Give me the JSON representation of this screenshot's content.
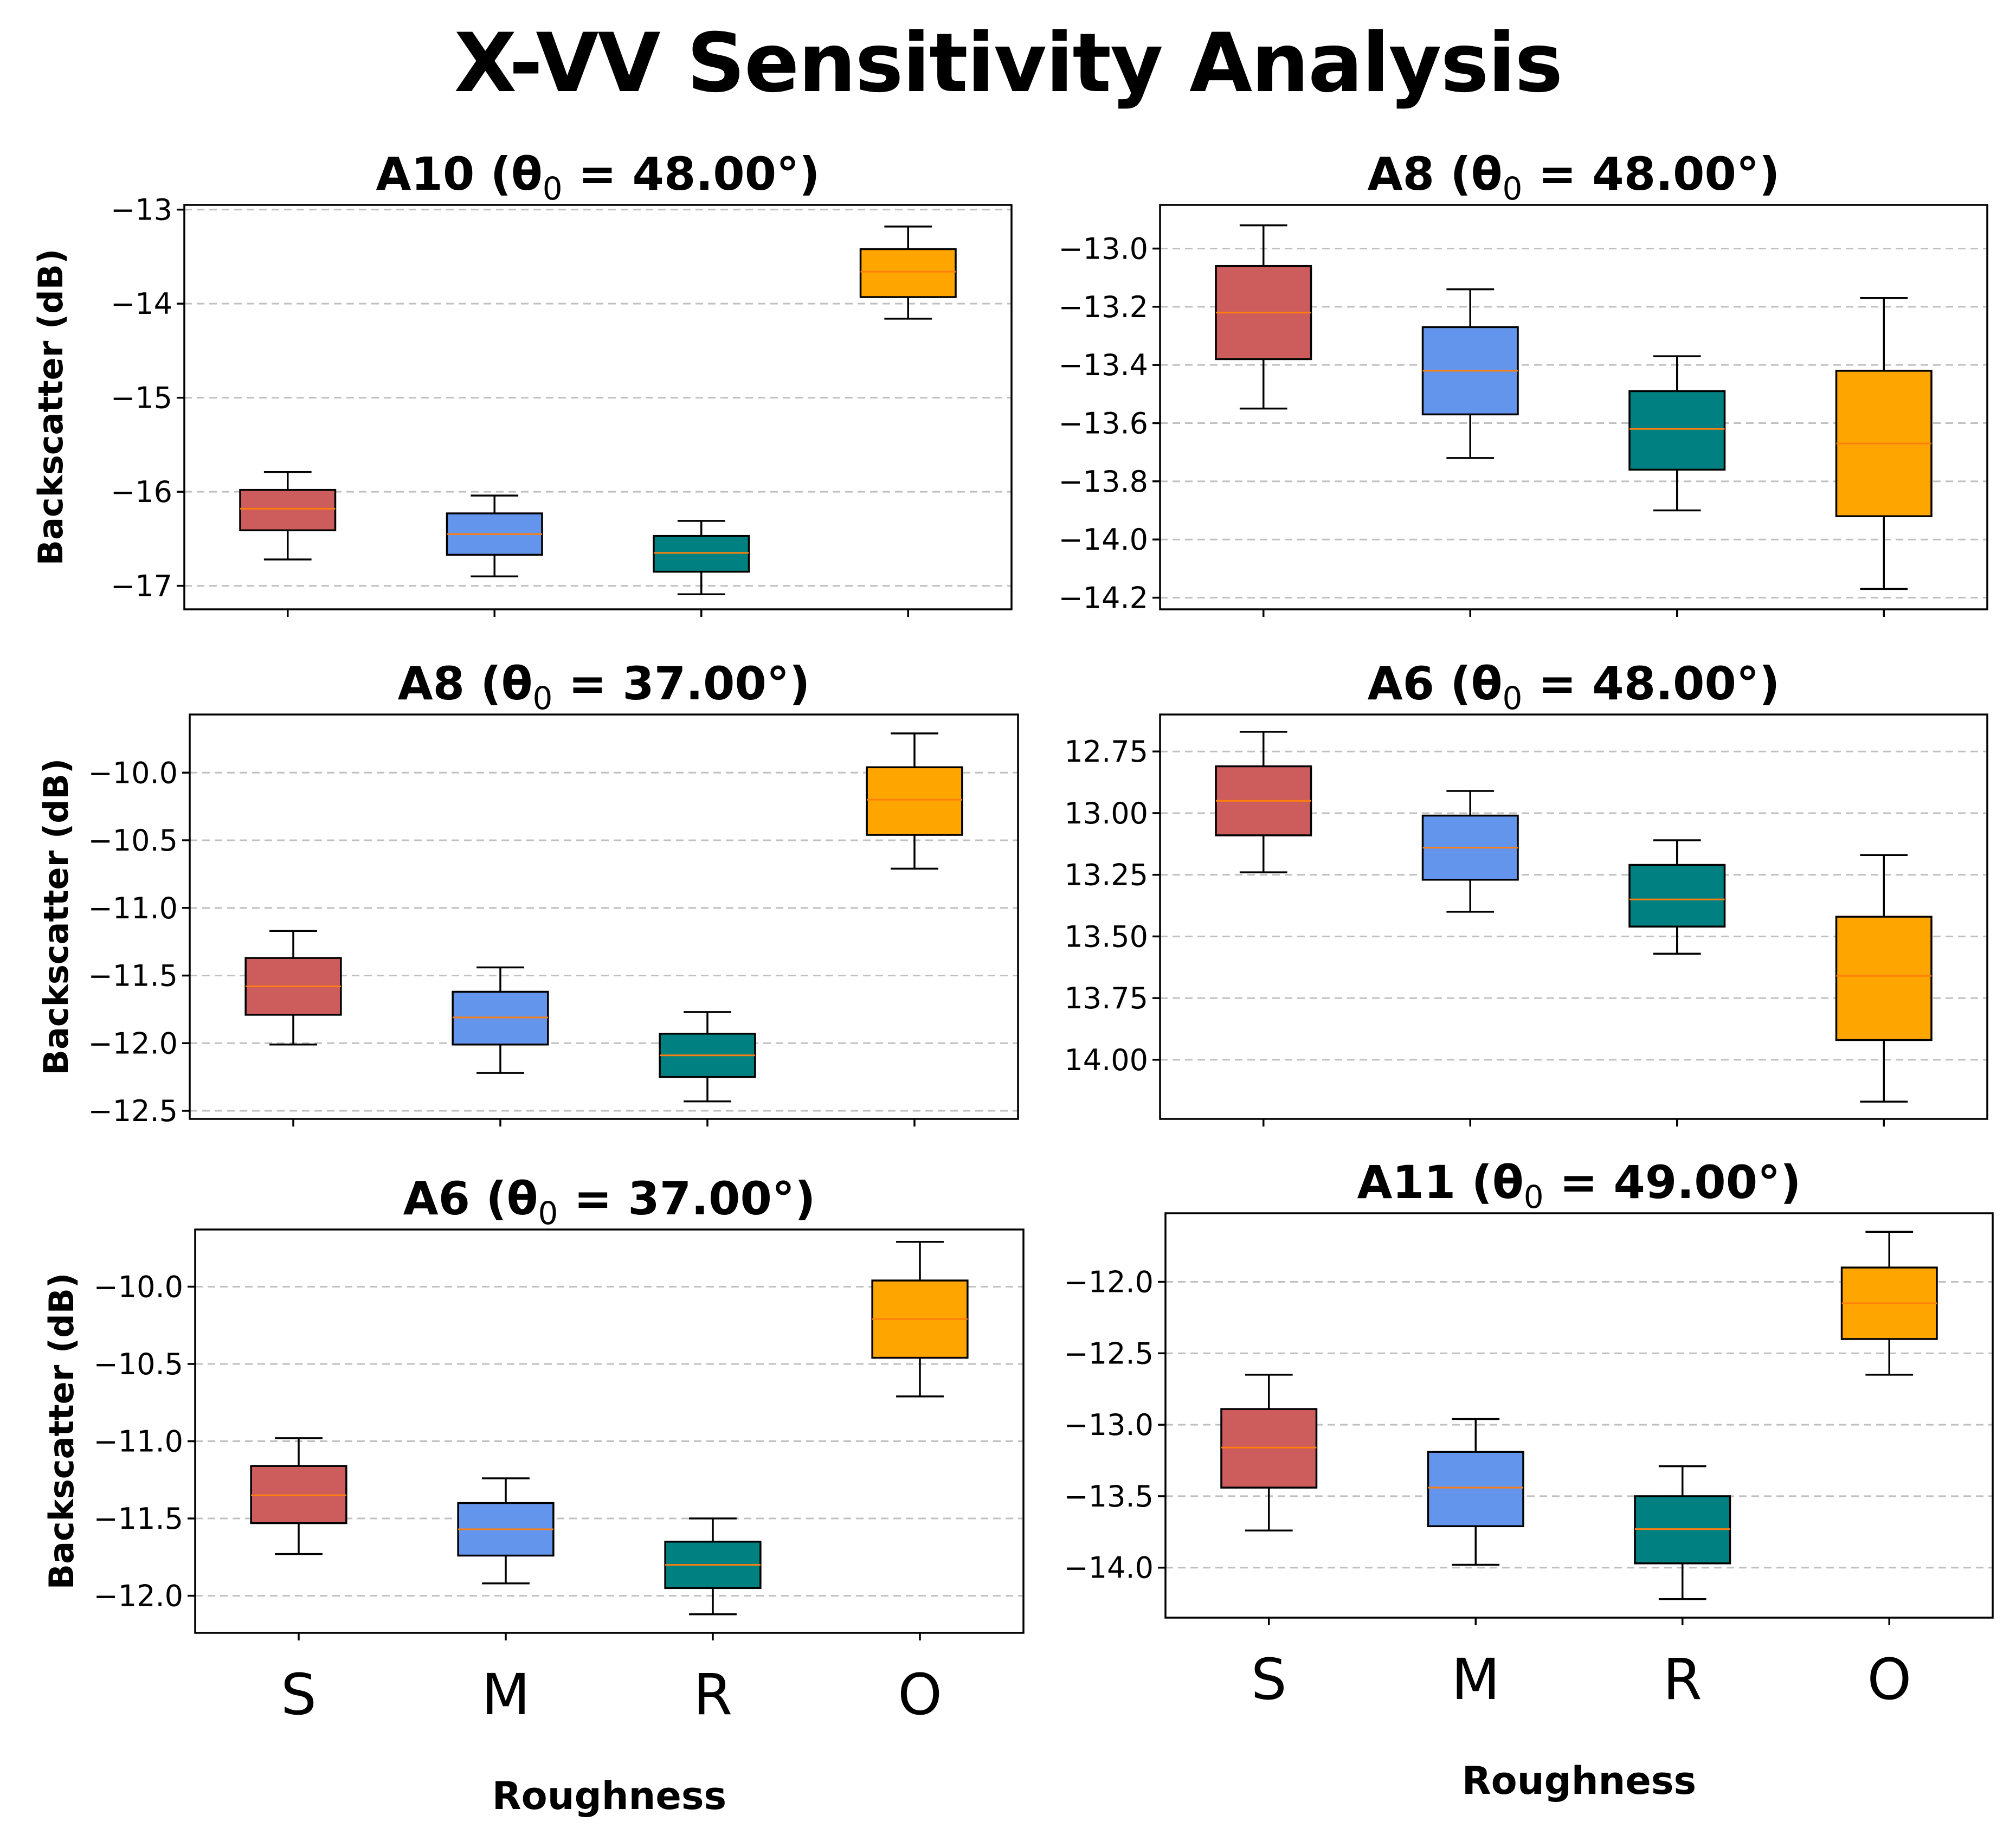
{
  "figure_title": "X-VV Sensitivity Analysis",
  "colors": {
    "S": "#cd5c5c",
    "M": "#6495ed",
    "R": "#008080",
    "O": "#ffa500",
    "median": "#ff7f0e",
    "grid": "#c0c0c0",
    "frame": "#000000"
  },
  "chart_data": [
    {
      "type": "box",
      "title": "A10 (θ0 = 48.00°)",
      "title_main": "A10 (θ",
      "title_sub": "0",
      "title_rest": " = 48.00°)",
      "ylabel": "Backscatter (dB)",
      "xlabel": "",
      "categories": [
        "S",
        "M",
        "R",
        "O"
      ],
      "ylim": [
        -17.25,
        -12.95
      ],
      "invert_y": false,
      "yticks": [
        -13,
        -14,
        -15,
        -16,
        -17
      ],
      "ytick_labels": [
        "−13",
        "−14",
        "−15",
        "−16",
        "−17"
      ],
      "boxes": [
        {
          "category": "S",
          "whislo": -16.72,
          "q1": -16.41,
          "median": -16.18,
          "q3": -15.98,
          "whishi": -15.79
        },
        {
          "category": "M",
          "whislo": -16.9,
          "q1": -16.67,
          "median": -16.45,
          "q3": -16.23,
          "whishi": -16.04
        },
        {
          "category": "R",
          "whislo": -17.09,
          "q1": -16.85,
          "median": -16.65,
          "q3": -16.47,
          "whishi": -16.31
        },
        {
          "category": "O",
          "whislo": -14.16,
          "q1": -13.93,
          "median": -13.66,
          "q3": -13.42,
          "whishi": -13.18
        }
      ],
      "grid": "y",
      "show_xtick_labels": false
    },
    {
      "type": "box",
      "title": "A8 (θ0 = 48.00°)",
      "title_main": "A8 (θ",
      "title_sub": "0",
      "title_rest": " = 48.00°)",
      "ylabel": "",
      "xlabel": "",
      "categories": [
        "S",
        "M",
        "R",
        "O"
      ],
      "ylim": [
        -14.24,
        -12.85
      ],
      "invert_y": false,
      "yticks": [
        -13.0,
        -13.2,
        -13.4,
        -13.6,
        -13.8,
        -14.0,
        -14.2
      ],
      "ytick_labels": [
        "−13.0",
        "−13.2",
        "−13.4",
        "−13.6",
        "−13.8",
        "−14.0",
        "−14.2"
      ],
      "boxes": [
        {
          "category": "S",
          "whislo": -13.55,
          "q1": -13.38,
          "median": -13.22,
          "q3": -13.06,
          "whishi": -12.92
        },
        {
          "category": "M",
          "whislo": -13.72,
          "q1": -13.57,
          "median": -13.42,
          "q3": -13.27,
          "whishi": -13.14
        },
        {
          "category": "R",
          "whislo": -13.9,
          "q1": -13.76,
          "median": -13.62,
          "q3": -13.49,
          "whishi": -13.37
        },
        {
          "category": "O",
          "whislo": -14.17,
          "q1": -13.92,
          "median": -13.67,
          "q3": -13.42,
          "whishi": -13.17
        }
      ],
      "grid": "y",
      "show_xtick_labels": false
    },
    {
      "type": "box",
      "title": "A8 (θ0 = 37.00°)",
      "title_main": "A8 (θ",
      "title_sub": "0",
      "title_rest": " = 37.00°)",
      "ylabel": "Backscatter (dB)",
      "xlabel": "",
      "categories": [
        "S",
        "M",
        "R",
        "O"
      ],
      "ylim": [
        -12.56,
        -9.57
      ],
      "invert_y": false,
      "yticks": [
        -10.0,
        -10.5,
        -11.0,
        -11.5,
        -12.0,
        -12.5
      ],
      "ytick_labels": [
        "−10.0",
        "−10.5",
        "−11.0",
        "−11.5",
        "−12.0",
        "−12.5"
      ],
      "boxes": [
        {
          "category": "S",
          "whislo": -12.01,
          "q1": -11.79,
          "median": -11.58,
          "q3": -11.37,
          "whishi": -11.17
        },
        {
          "category": "M",
          "whislo": -12.22,
          "q1": -12.01,
          "median": -11.81,
          "q3": -11.62,
          "whishi": -11.44
        },
        {
          "category": "R",
          "whislo": -12.43,
          "q1": -12.25,
          "median": -12.09,
          "q3": -11.93,
          "whishi": -11.77
        },
        {
          "category": "O",
          "whislo": -10.71,
          "q1": -10.46,
          "median": -10.2,
          "q3": -9.96,
          "whishi": -9.71
        }
      ],
      "grid": "y",
      "show_xtick_labels": false
    },
    {
      "type": "box",
      "title": "A6 (θ0 = 48.00°)",
      "title_main": "A6 (θ",
      "title_sub": "0",
      "title_rest": " = 48.00°)",
      "ylabel": "",
      "xlabel": "",
      "categories": [
        "S",
        "M",
        "R",
        "O"
      ],
      "ylim": [
        12.6,
        14.24
      ],
      "invert_y": true,
      "yticks": [
        12.75,
        13.0,
        13.25,
        13.5,
        13.75,
        14.0
      ],
      "ytick_labels": [
        "12.75",
        "13.00",
        "13.25",
        "13.50",
        "13.75",
        "14.00"
      ],
      "boxes": [
        {
          "category": "S",
          "whislo": 12.67,
          "q1": 12.81,
          "median": 12.95,
          "q3": 13.09,
          "whishi": 13.24
        },
        {
          "category": "M",
          "whislo": 12.91,
          "q1": 13.01,
          "median": 13.14,
          "q3": 13.27,
          "whishi": 13.4
        },
        {
          "category": "R",
          "whislo": 13.11,
          "q1": 13.21,
          "median": 13.35,
          "q3": 13.46,
          "whishi": 13.57
        },
        {
          "category": "O",
          "whislo": 13.17,
          "q1": 13.42,
          "median": 13.66,
          "q3": 13.92,
          "whishi": 14.17
        }
      ],
      "grid": "y",
      "show_xtick_labels": false
    },
    {
      "type": "box",
      "title": "A6 (θ0 = 37.00°)",
      "title_main": "A6 (θ",
      "title_sub": "0",
      "title_rest": " = 37.00°)",
      "ylabel": "Backscatter (dB)",
      "xlabel": "Roughness",
      "categories": [
        "S",
        "M",
        "R",
        "O"
      ],
      "ylim": [
        -12.24,
        -9.63
      ],
      "invert_y": false,
      "yticks": [
        -10.0,
        -10.5,
        -11.0,
        -11.5,
        -12.0
      ],
      "ytick_labels": [
        "−10.0",
        "−10.5",
        "−11.0",
        "−11.5",
        "−12.0"
      ],
      "boxes": [
        {
          "category": "S",
          "whislo": -11.73,
          "q1": -11.53,
          "median": -11.35,
          "q3": -11.16,
          "whishi": -10.98
        },
        {
          "category": "M",
          "whislo": -11.92,
          "q1": -11.74,
          "median": -11.57,
          "q3": -11.4,
          "whishi": -11.24
        },
        {
          "category": "R",
          "whislo": -12.12,
          "q1": -11.95,
          "median": -11.8,
          "q3": -11.65,
          "whishi": -11.5
        },
        {
          "category": "O",
          "whislo": -10.71,
          "q1": -10.46,
          "median": -10.21,
          "q3": -9.96,
          "whishi": -9.71
        }
      ],
      "grid": "y",
      "show_xtick_labels": true
    },
    {
      "type": "box",
      "title": "A11 (θ0 = 49.00°)",
      "title_main": "A11 (θ",
      "title_sub": "0",
      "title_rest": " = 49.00°)",
      "ylabel": "",
      "xlabel": "Roughness",
      "categories": [
        "S",
        "M",
        "R",
        "O"
      ],
      "ylim": [
        -14.35,
        -11.52
      ],
      "invert_y": false,
      "yticks": [
        -12.0,
        -12.5,
        -13.0,
        -13.5,
        -14.0
      ],
      "ytick_labels": [
        "−12.0",
        "−12.5",
        "−13.0",
        "−13.5",
        "−14.0"
      ],
      "boxes": [
        {
          "category": "S",
          "whislo": -13.74,
          "q1": -13.44,
          "median": -13.16,
          "q3": -12.89,
          "whishi": -12.65
        },
        {
          "category": "M",
          "whislo": -13.98,
          "q1": -13.71,
          "median": -13.44,
          "q3": -13.19,
          "whishi": -12.96
        },
        {
          "category": "R",
          "whislo": -14.22,
          "q1": -13.97,
          "median": -13.73,
          "q3": -13.5,
          "whishi": -13.29
        },
        {
          "category": "O",
          "whislo": -12.65,
          "q1": -12.4,
          "median": -12.15,
          "q3": -11.9,
          "whishi": -11.65
        }
      ],
      "grid": "y",
      "show_xtick_labels": true
    }
  ]
}
